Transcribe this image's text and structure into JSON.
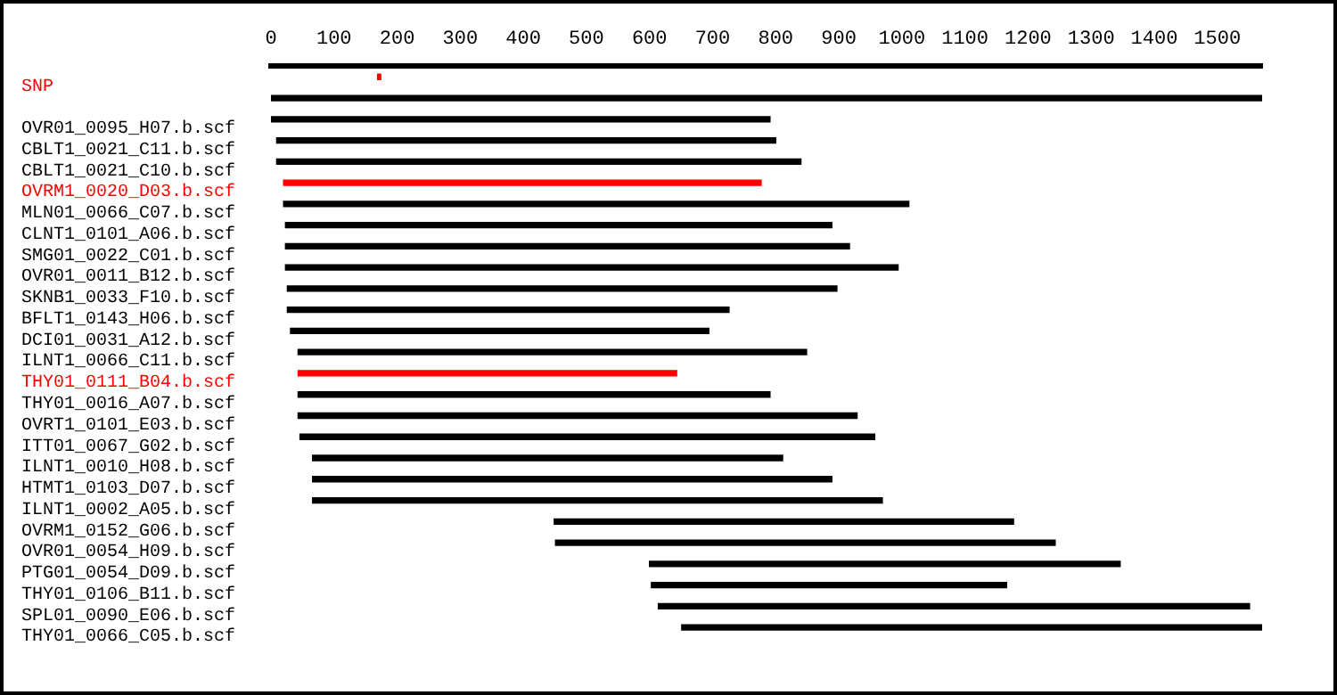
{
  "chart_data": {
    "type": "bar",
    "orientation": "horizontal",
    "categories": [
      "SNP",
      null,
      "OVR01_0095_H07.b.scf",
      "CBLT1_0021_C11.b.scf",
      "CBLT1_0021_C10.b.scf",
      "OVRM1_0020_D03.b.scf",
      "MLN01_0066_C07.b.scf",
      "CLNT1_0101_A06.b.scf",
      "SMG01_0022_C01.b.scf",
      "OVR01_0011_B12.b.scf",
      "SKNB1_0033_F10.b.scf",
      "BFLT1_0143_H06.b.scf",
      "DCI01_0031_A12.b.scf",
      "ILNT1_0066_C11.b.scf",
      "THY01_0111_B04.b.scf",
      "THY01_0016_A07.b.scf",
      "OVRT1_0101_E03.b.scf",
      "ITT01_0067_G02.b.scf",
      "ILNT1_0010_H08.b.scf",
      "HTMT1_0103_D07.b.scf",
      "ILNT1_0002_A05.b.scf",
      "OVRM1_0152_G06.b.scf",
      "OVR01_0054_H09.b.scf",
      "PTG01_0054_D09.b.scf",
      "THY01_0106_B11.b.scf",
      "SPL01_0090_E06.b.scf",
      "THY01_0066_C05.b.scf"
    ],
    "base": [
      169,
      0,
      0,
      9,
      9,
      20,
      20,
      23,
      23,
      23,
      26,
      26,
      31,
      43,
      43,
      43,
      43,
      46,
      66,
      66,
      66,
      449,
      451,
      600,
      603,
      614,
      651
    ],
    "values": [
      5,
      1571,
      791,
      791,
      831,
      757,
      991,
      866,
      894,
      971,
      871,
      700,
      663,
      806,
      600,
      748,
      886,
      911,
      745,
      823,
      903,
      728,
      792,
      746,
      563,
      937,
      923
    ],
    "colors": [
      "#ff0000",
      "#000000",
      "#000000",
      "#000000",
      "#000000",
      "#ff0000",
      "#000000",
      "#000000",
      "#000000",
      "#000000",
      "#000000",
      "#000000",
      "#000000",
      "#000000",
      "#ff0000",
      "#000000",
      "#000000",
      "#000000",
      "#000000",
      "#000000",
      "#000000",
      "#000000",
      "#000000",
      "#000000",
      "#000000",
      "#000000",
      "#000000"
    ],
    "xlim": [
      0,
      1571
    ],
    "xticks": [
      0,
      100,
      200,
      300,
      400,
      500,
      600,
      700,
      800,
      900,
      1000,
      1100,
      1200,
      1300,
      1400,
      1500
    ],
    "grid": false,
    "legend": false
  }
}
